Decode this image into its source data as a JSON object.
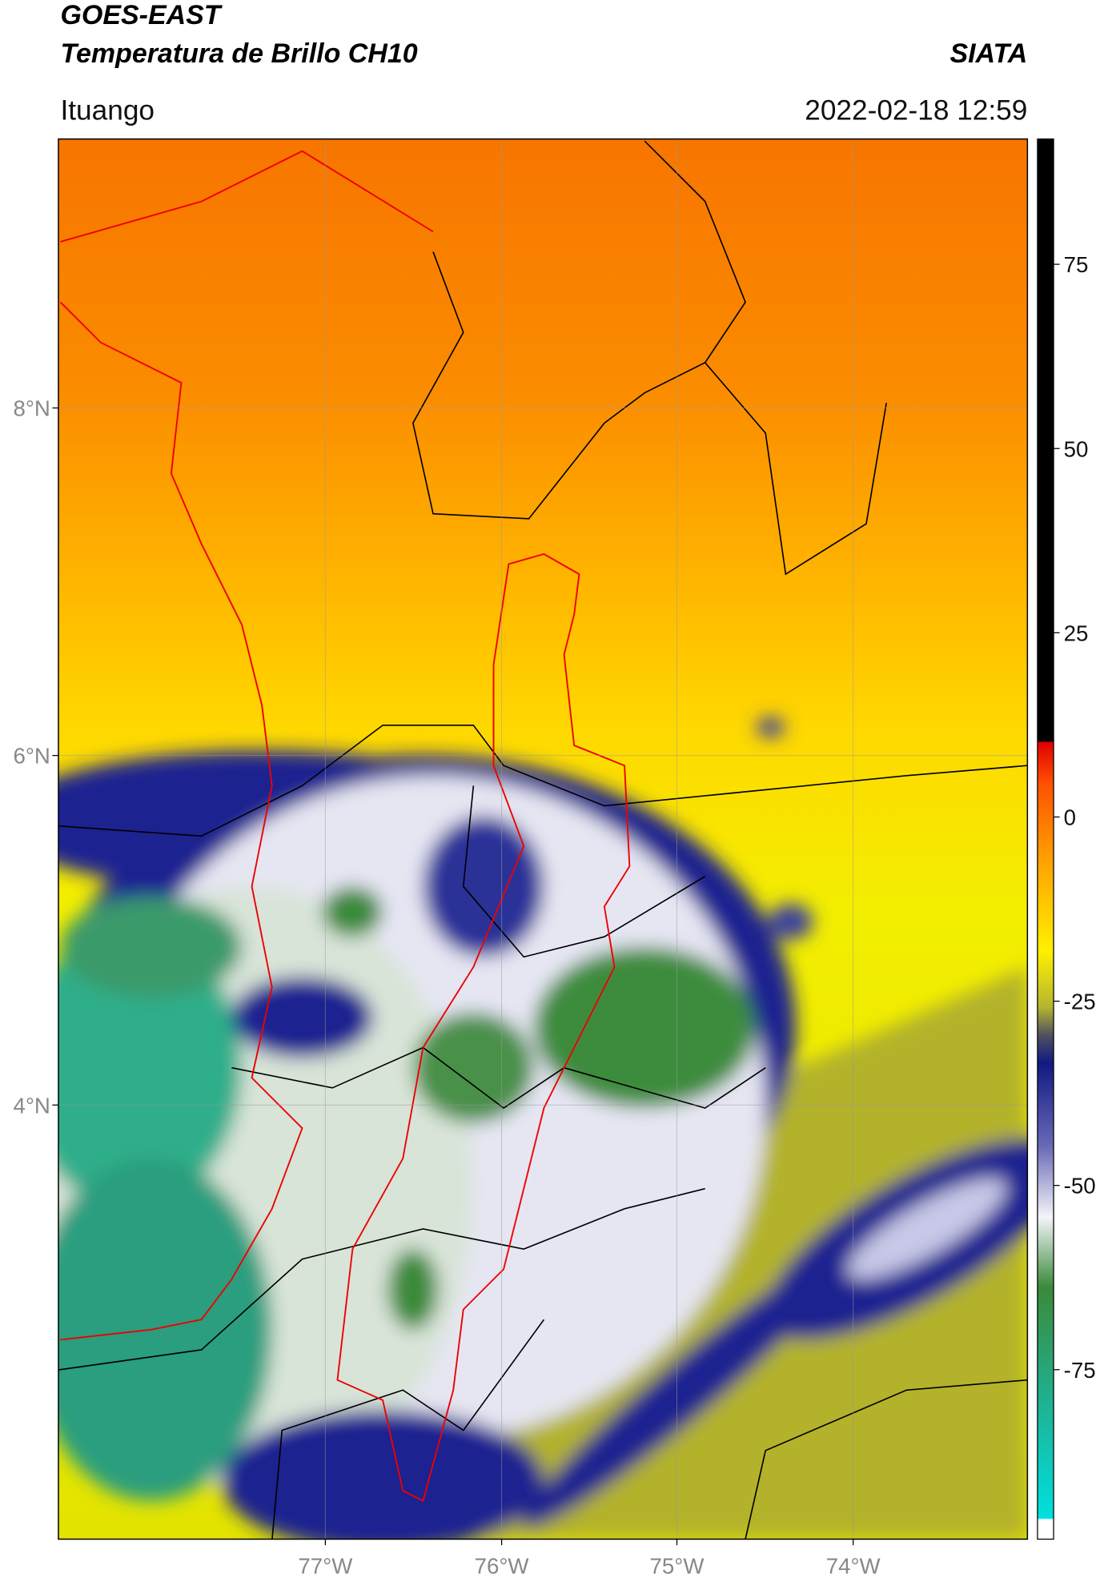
{
  "header": {
    "title": "GOES-EAST",
    "subtitle": "Temperatura de Brillo CH10",
    "source": "SIATA",
    "location": "Ituango",
    "timestamp": "2022-02-18 12:59"
  },
  "map": {
    "lat_labels": [
      "8°N",
      "6°N",
      "4°N"
    ],
    "lon_labels": [
      "77°W",
      "76°W",
      "75°W",
      "74°W"
    ]
  },
  "colorbar": {
    "lim": [
      -98,
      92
    ],
    "ticks": [
      75,
      50,
      25,
      0,
      -25,
      -50,
      -75
    ]
  }
}
